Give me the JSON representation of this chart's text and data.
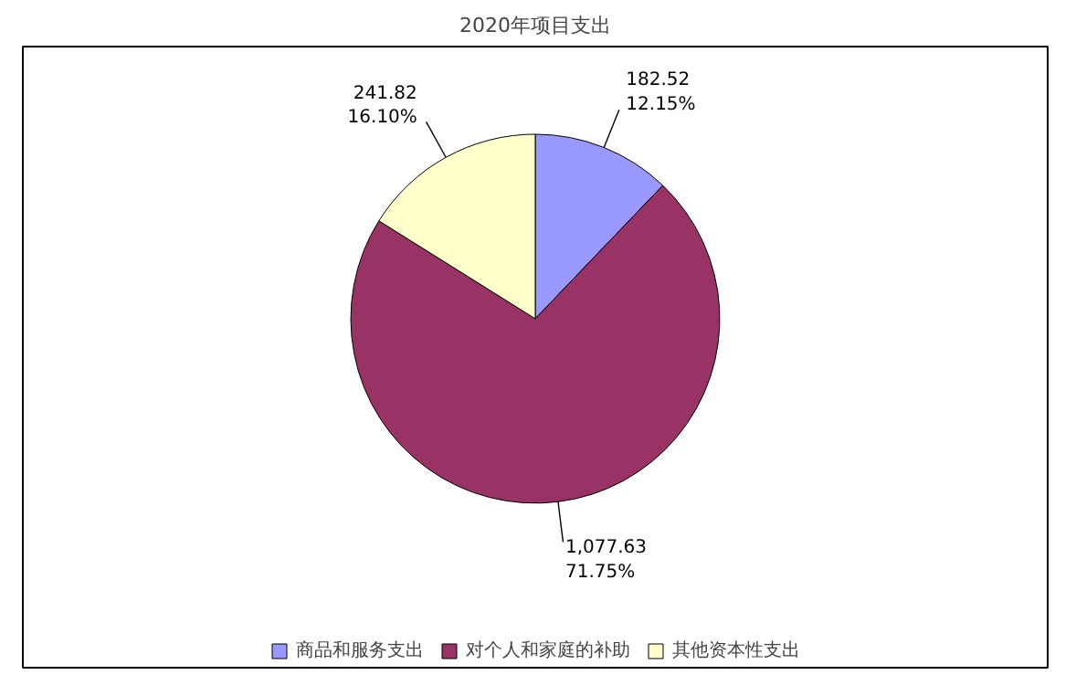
{
  "chart_data": {
    "type": "pie",
    "title": "2020年项目支出",
    "categories": [
      "商品和服务支出",
      "对个人和家庭的补助",
      "其他资本性支出"
    ],
    "values": [
      182.52,
      1077.63,
      241.82
    ],
    "colors": [
      "#9999ff",
      "#993366",
      "#ffffcc"
    ],
    "value_labels": [
      "182.52\n12.15%",
      "1,077.63\n71.75%",
      "241.82\n16.10%"
    ],
    "legend": "bottom"
  }
}
